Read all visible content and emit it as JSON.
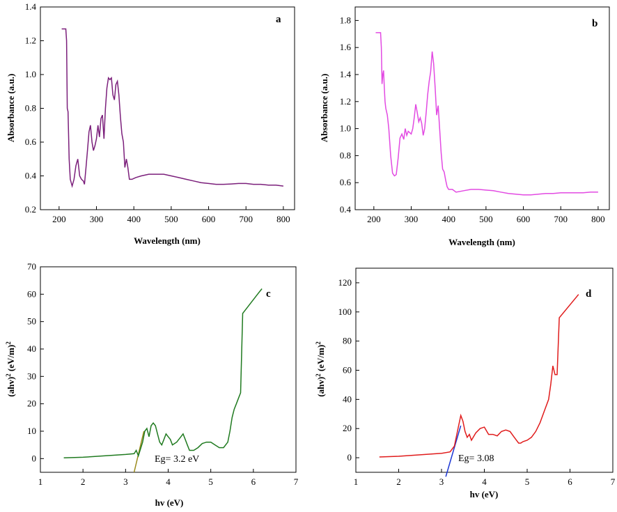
{
  "chart_data": [
    {
      "type": "line",
      "panel_label": "a",
      "xlabel": "Wavelength (nm)",
      "ylabel": "Absorbance (a.u.)",
      "xlim": [
        150,
        830
      ],
      "ylim": [
        0.2,
        1.4
      ],
      "xticks": [
        200,
        300,
        400,
        500,
        600,
        700,
        800
      ],
      "yticks": [
        0.2,
        0.4,
        0.6,
        0.8,
        1.0,
        1.2,
        1.4
      ],
      "xtick_labels": [
        "200",
        "300",
        "400",
        "500",
        "600",
        "700",
        "800"
      ],
      "ytick_labels": [
        "0.2",
        "0.4",
        "0.6",
        "0.8",
        "1.0",
        "1.2",
        "1.4"
      ],
      "color": "#7b1f7b",
      "series": [
        {
          "name": "a",
          "x": [
            207,
            218,
            220,
            222,
            224,
            227,
            230,
            235,
            240,
            245,
            250,
            255,
            260,
            265,
            268,
            272,
            276,
            280,
            284,
            288,
            292,
            296,
            300,
            304,
            308,
            312,
            316,
            320,
            324,
            328,
            332,
            336,
            340,
            344,
            348,
            352,
            356,
            360,
            364,
            368,
            372,
            376,
            380,
            384,
            388,
            395,
            405,
            420,
            440,
            460,
            480,
            500,
            520,
            540,
            560,
            580,
            600,
            620,
            640,
            660,
            680,
            700,
            720,
            740,
            760,
            780,
            800
          ],
          "y": [
            1.27,
            1.27,
            1.2,
            0.8,
            0.78,
            0.5,
            0.38,
            0.34,
            0.38,
            0.46,
            0.5,
            0.4,
            0.38,
            0.37,
            0.35,
            0.45,
            0.55,
            0.66,
            0.7,
            0.6,
            0.55,
            0.58,
            0.62,
            0.7,
            0.63,
            0.74,
            0.76,
            0.62,
            0.8,
            0.92,
            0.98,
            0.97,
            0.98,
            0.88,
            0.85,
            0.94,
            0.96,
            0.88,
            0.75,
            0.65,
            0.6,
            0.45,
            0.5,
            0.45,
            0.38,
            0.38,
            0.39,
            0.4,
            0.41,
            0.41,
            0.41,
            0.4,
            0.39,
            0.38,
            0.37,
            0.36,
            0.355,
            0.35,
            0.35,
            0.352,
            0.355,
            0.355,
            0.35,
            0.35,
            0.345,
            0.345,
            0.34
          ]
        }
      ]
    },
    {
      "type": "line",
      "panel_label": "b",
      "xlabel": "Wavelength (nm)",
      "ylabel": "Absorbance (a.u.)",
      "xlim": [
        150,
        830
      ],
      "ylim": [
        0.4,
        1.9
      ],
      "xticks": [
        200,
        300,
        400,
        500,
        600,
        700,
        800
      ],
      "yticks": [
        0.4,
        0.6,
        0.8,
        1.0,
        1.2,
        1.4,
        1.6,
        1.8
      ],
      "xtick_labels": [
        "200",
        "300",
        "400",
        "500",
        "600",
        "700",
        "800"
      ],
      "ytick_labels": [
        "0.4",
        "0.6",
        "0.8",
        "1.0",
        "1.2",
        "1.4",
        "1.6",
        "1.8"
      ],
      "color": "#e24ae2",
      "series": [
        {
          "name": "b",
          "x": [
            205,
            218,
            220,
            222,
            224,
            226,
            228,
            230,
            232,
            236,
            240,
            245,
            250,
            255,
            260,
            265,
            270,
            275,
            280,
            284,
            288,
            292,
            296,
            300,
            304,
            308,
            312,
            316,
            320,
            324,
            328,
            332,
            336,
            340,
            344,
            348,
            352,
            356,
            360,
            364,
            368,
            372,
            376,
            380,
            384,
            388,
            392,
            396,
            400,
            410,
            420,
            440,
            460,
            480,
            500,
            520,
            540,
            560,
            580,
            600,
            620,
            640,
            660,
            680,
            700,
            720,
            740,
            760,
            780,
            800
          ],
          "y": [
            1.71,
            1.71,
            1.6,
            1.33,
            1.4,
            1.43,
            1.3,
            1.2,
            1.15,
            1.1,
            1.0,
            0.8,
            0.67,
            0.65,
            0.66,
            0.78,
            0.93,
            0.96,
            0.92,
            1.0,
            0.95,
            0.98,
            0.97,
            0.96,
            1.0,
            1.08,
            1.18,
            1.12,
            1.05,
            1.08,
            1.04,
            0.95,
            1.0,
            1.12,
            1.25,
            1.35,
            1.42,
            1.57,
            1.48,
            1.3,
            1.1,
            1.17,
            1.0,
            0.82,
            0.7,
            0.68,
            0.62,
            0.57,
            0.55,
            0.55,
            0.53,
            0.54,
            0.55,
            0.55,
            0.545,
            0.54,
            0.53,
            0.52,
            0.515,
            0.51,
            0.51,
            0.515,
            0.52,
            0.52,
            0.525,
            0.525,
            0.525,
            0.525,
            0.53,
            0.53
          ]
        }
      ]
    },
    {
      "type": "line",
      "panel_label": "c",
      "xlabel": "hv (eV)",
      "ylabel": "(ahv)2 (eV/m)2",
      "annotation": "Eg= 3.2 eV",
      "xlim": [
        1,
        7
      ],
      "ylim": [
        -5,
        70
      ],
      "xticks": [
        1,
        2,
        3,
        4,
        5,
        6,
        7
      ],
      "yticks": [
        0,
        10,
        20,
        30,
        40,
        50,
        60,
        70
      ],
      "xtick_labels": [
        "1",
        "2",
        "3",
        "4",
        "5",
        "6",
        "7"
      ],
      "ytick_labels": [
        "0",
        "10",
        "20",
        "30",
        "40",
        "50",
        "60",
        "70"
      ],
      "color": "#1f7a1f",
      "fit_color": "#9a8a1a",
      "fit_line": {
        "x": [
          3.2,
          3.43
        ],
        "y": [
          -5,
          10
        ]
      },
      "series": [
        {
          "name": "c",
          "x": [
            1.55,
            2.0,
            2.5,
            3.0,
            3.2,
            3.25,
            3.3,
            3.35,
            3.4,
            3.45,
            3.5,
            3.55,
            3.6,
            3.65,
            3.7,
            3.75,
            3.8,
            3.85,
            3.9,
            3.95,
            4.0,
            4.05,
            4.1,
            4.2,
            4.3,
            4.35,
            4.4,
            4.45,
            4.5,
            4.6,
            4.7,
            4.8,
            4.9,
            5.0,
            5.1,
            5.2,
            5.3,
            5.4,
            5.45,
            5.5,
            5.55,
            5.6,
            5.65,
            5.7,
            5.75,
            5.8,
            5.9,
            6.0,
            6.1,
            6.2
          ],
          "y": [
            0.3,
            0.5,
            1.0,
            1.5,
            1.8,
            3.0,
            1.0,
            3.5,
            6.0,
            10.0,
            11.0,
            8.0,
            12.0,
            13.0,
            12.0,
            9.0,
            6.0,
            5.0,
            7.0,
            9.0,
            8.0,
            7.0,
            5.0,
            6.0,
            8.0,
            9.0,
            7.0,
            5.0,
            3.0,
            3.0,
            4.0,
            5.5,
            6.0,
            6.0,
            5.0,
            4.0,
            4.0,
            6.0,
            10.0,
            15.0,
            18.0,
            20.0,
            22.0,
            24.0,
            53.0,
            54.0,
            56.0,
            58.0,
            60.0,
            62.0
          ]
        }
      ]
    },
    {
      "type": "line",
      "panel_label": "d",
      "xlabel": "hv (eV)",
      "ylabel": "(ahv)2 (eV/m)2",
      "annotation": "Eg= 3.08",
      "xlim": [
        1,
        7
      ],
      "ylim": [
        -10,
        130
      ],
      "xticks": [
        1,
        2,
        3,
        4,
        5,
        6,
        7
      ],
      "yticks": [
        0,
        20,
        40,
        60,
        80,
        100,
        120
      ],
      "xtick_labels": [
        "1",
        "2",
        "3",
        "4",
        "5",
        "6",
        "7"
      ],
      "ytick_labels": [
        "0",
        "20",
        "40",
        "60",
        "80",
        "100",
        "120"
      ],
      "color": "#e01b1b",
      "fit_color": "#1a35d4",
      "fit_line": {
        "x": [
          3.1,
          3.45
        ],
        "y": [
          -13,
          22
        ]
      },
      "series": [
        {
          "name": "d",
          "x": [
            1.55,
            2.0,
            2.5,
            3.0,
            3.2,
            3.3,
            3.4,
            3.45,
            3.5,
            3.55,
            3.6,
            3.65,
            3.7,
            3.8,
            3.9,
            4.0,
            4.1,
            4.2,
            4.3,
            4.4,
            4.5,
            4.6,
            4.7,
            4.8,
            4.85,
            4.9,
            5.0,
            5.1,
            5.2,
            5.3,
            5.4,
            5.5,
            5.55,
            5.6,
            5.65,
            5.7,
            5.75,
            6.2
          ],
          "y": [
            0.5,
            1.0,
            2.0,
            3.0,
            4.0,
            8.0,
            22.0,
            29.0,
            25.0,
            18.0,
            14.0,
            16.0,
            12.0,
            17.0,
            20.0,
            21.0,
            16.0,
            16.0,
            15.0,
            18.0,
            19.0,
            18.0,
            14.0,
            10.0,
            10.0,
            11.0,
            12.0,
            14.0,
            18.0,
            24.0,
            32.0,
            40.0,
            50.0,
            63.0,
            57.0,
            57.0,
            96.0,
            112.0
          ]
        }
      ]
    }
  ]
}
